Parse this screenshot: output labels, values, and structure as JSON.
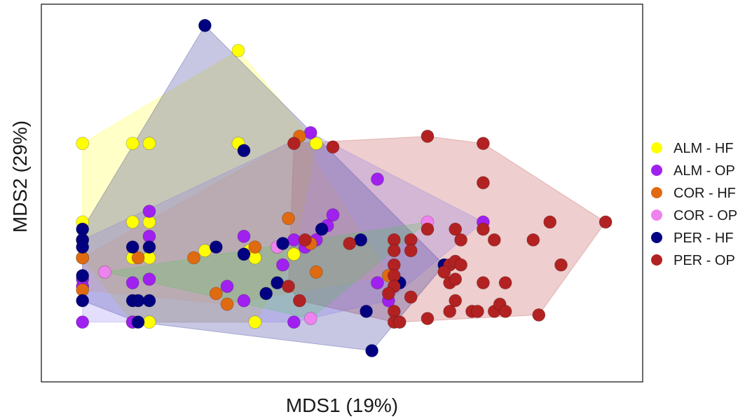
{
  "chart_data": {
    "type": "scatter",
    "xlabel": "MDS1 (19%)",
    "ylabel": "MDS2 (29%)",
    "xlim": [
      0,
      100
    ],
    "ylim": [
      0,
      100
    ],
    "grid": false,
    "axis_ticks": false,
    "legend_position": "right",
    "hulls": true,
    "series": [
      {
        "name": "ALM - HF",
        "color": "#ffff00",
        "hull_color": "#ffff00",
        "points": [
          [
            5,
            63
          ],
          [
            14,
            63
          ],
          [
            17,
            63
          ],
          [
            33,
            63
          ],
          [
            47,
            63
          ],
          [
            5,
            41
          ],
          [
            14,
            41
          ],
          [
            17,
            41
          ],
          [
            5,
            31
          ],
          [
            14,
            31
          ],
          [
            17,
            31
          ],
          [
            27,
            33
          ],
          [
            35,
            33
          ],
          [
            36,
            31
          ],
          [
            43,
            32
          ],
          [
            14,
            13
          ],
          [
            17,
            13
          ],
          [
            36,
            13
          ],
          [
            33,
            89
          ]
        ]
      },
      {
        "name": "ALM - OP",
        "color": "#a020f0",
        "hull_color": "#7b68ee",
        "points": [
          [
            46,
            66
          ],
          [
            5,
            36
          ],
          [
            5,
            25
          ],
          [
            5,
            23
          ],
          [
            5,
            13
          ],
          [
            17,
            44
          ],
          [
            17,
            37
          ],
          [
            17,
            25
          ],
          [
            14,
            24
          ],
          [
            14,
            13
          ],
          [
            34,
            37
          ],
          [
            31,
            23
          ],
          [
            34,
            19
          ],
          [
            43,
            13
          ],
          [
            41,
            29
          ],
          [
            43,
            36
          ],
          [
            45,
            34
          ],
          [
            47,
            36
          ],
          [
            49,
            40
          ],
          [
            50,
            43
          ],
          [
            58,
            53
          ],
          [
            58,
            24
          ],
          [
            60,
            19
          ],
          [
            77,
            41
          ]
        ]
      },
      {
        "name": "COR - HF",
        "color": "#e06a10",
        "hull_color": "#dda060",
        "points": [
          [
            44,
            65
          ],
          [
            42,
            42
          ],
          [
            5,
            31
          ],
          [
            5,
            22
          ],
          [
            15,
            31
          ],
          [
            25,
            31
          ],
          [
            29,
            21
          ],
          [
            36,
            34
          ],
          [
            46,
            35
          ],
          [
            47,
            27
          ],
          [
            60,
            26
          ],
          [
            31,
            18
          ]
        ]
      },
      {
        "name": "COR - OP",
        "color": "#ee82ee",
        "hull_color": "#44cc44",
        "points": [
          [
            9,
            27
          ],
          [
            40,
            34
          ],
          [
            46,
            14
          ],
          [
            67,
            41
          ]
        ]
      },
      {
        "name": "PER - HF",
        "color": "#000080",
        "hull_color": "#000080",
        "points": [
          [
            27,
            96
          ],
          [
            34,
            61
          ],
          [
            5,
            39
          ],
          [
            5,
            36
          ],
          [
            5,
            34
          ],
          [
            5,
            26
          ],
          [
            5,
            19
          ],
          [
            14,
            34
          ],
          [
            17,
            34
          ],
          [
            14,
            19
          ],
          [
            15,
            19
          ],
          [
            17,
            19
          ],
          [
            15,
            13
          ],
          [
            29,
            34
          ],
          [
            34,
            32
          ],
          [
            41,
            35
          ],
          [
            40,
            24
          ],
          [
            38,
            21
          ],
          [
            48,
            39
          ],
          [
            55,
            36
          ],
          [
            56,
            16
          ],
          [
            62,
            24
          ],
          [
            70,
            29
          ],
          [
            57,
            5
          ]
        ]
      },
      {
        "name": "PER - OP",
        "color": "#b22222",
        "hull_color": "#b22222",
        "points": [
          [
            43,
            63
          ],
          [
            50,
            62
          ],
          [
            67,
            65
          ],
          [
            77,
            63
          ],
          [
            77,
            52
          ],
          [
            99,
            41
          ],
          [
            89,
            41
          ],
          [
            86,
            36
          ],
          [
            77,
            39
          ],
          [
            79,
            36
          ],
          [
            72,
            39
          ],
          [
            73,
            36
          ],
          [
            67,
            39
          ],
          [
            61,
            36
          ],
          [
            64,
            36
          ],
          [
            61,
            33
          ],
          [
            64,
            33
          ],
          [
            53,
            35
          ],
          [
            45,
            36
          ],
          [
            61,
            29
          ],
          [
            61,
            26
          ],
          [
            61,
            23
          ],
          [
            60,
            21
          ],
          [
            64,
            20
          ],
          [
            61,
            16
          ],
          [
            61,
            13
          ],
          [
            62,
            13
          ],
          [
            71,
            29
          ],
          [
            72,
            30
          ],
          [
            70,
            27
          ],
          [
            71,
            24
          ],
          [
            73,
            29
          ],
          [
            72,
            25
          ],
          [
            77,
            24
          ],
          [
            81,
            24
          ],
          [
            91,
            29
          ],
          [
            72,
            19
          ],
          [
            75,
            16
          ],
          [
            71,
            16
          ],
          [
            76,
            16
          ],
          [
            79,
            16
          ],
          [
            80,
            18
          ],
          [
            81,
            16
          ],
          [
            87,
            15
          ],
          [
            67,
            14
          ],
          [
            42,
            23
          ],
          [
            44,
            19
          ]
        ]
      }
    ]
  }
}
